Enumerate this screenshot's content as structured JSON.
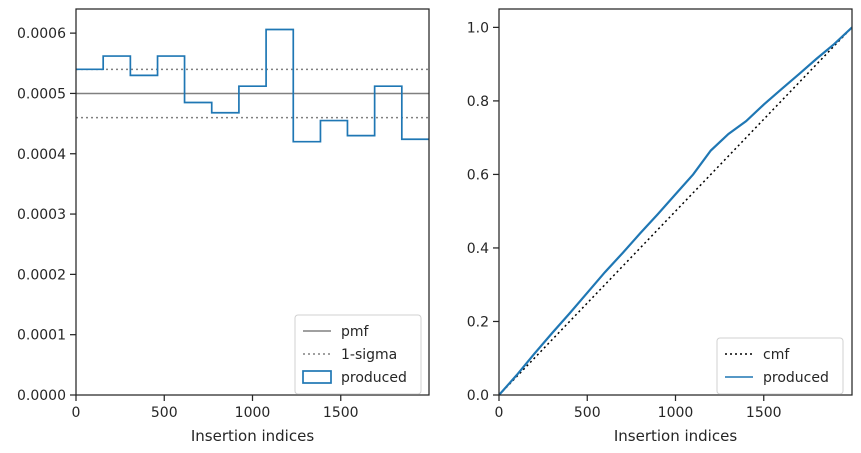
{
  "chart_data": [
    {
      "type": "line",
      "xlabel": "Insertion indices",
      "ylabel": "",
      "xlim": [
        0,
        2000
      ],
      "ylim": [
        0,
        0.00064
      ],
      "x_ticks": [
        0,
        500,
        1000,
        1500
      ],
      "x_tick_labels": [
        "0",
        "500",
        "1000",
        "1500"
      ],
      "y_ticks": [
        0,
        0.0001,
        0.0002,
        0.0003,
        0.0004,
        0.0005,
        0.0006
      ],
      "y_tick_labels": [
        "0.0000",
        "0.0001",
        "0.0002",
        "0.0003",
        "0.0004",
        "0.0005",
        "0.0006"
      ],
      "grid": false,
      "legend_position": "lower-right",
      "series": [
        {
          "name": "pmf",
          "kind": "hline",
          "value": 0.0005,
          "color": "#808080",
          "style": "solid"
        },
        {
          "name": "1-sigma",
          "kind": "hlines",
          "values": [
            0.00054,
            0.00046
          ],
          "color": "#808080",
          "style": "dotted"
        },
        {
          "name": "produced",
          "kind": "step",
          "color": "#1f77b4",
          "bin_edges": [
            0,
            154,
            308,
            462,
            615,
            769,
            923,
            1077,
            1231,
            1385,
            1538,
            1692,
            1846,
            2000
          ],
          "values": [
            0.00054,
            0.000562,
            0.00053,
            0.000562,
            0.000485,
            0.000468,
            0.000512,
            0.000606,
            0.00042,
            0.000455,
            0.00043,
            0.000512,
            0.000424
          ]
        }
      ]
    },
    {
      "type": "line",
      "xlabel": "Insertion indices",
      "ylabel": "",
      "xlim": [
        0,
        2000
      ],
      "ylim": [
        0,
        1.05
      ],
      "x_ticks": [
        0,
        500,
        1000,
        1500
      ],
      "x_tick_labels": [
        "0",
        "500",
        "1000",
        "1500"
      ],
      "y_ticks": [
        0,
        0.2,
        0.4,
        0.6,
        0.8,
        1.0
      ],
      "y_tick_labels": [
        "0.0",
        "0.2",
        "0.4",
        "0.6",
        "0.8",
        "1.0"
      ],
      "grid": false,
      "legend_position": "lower-right",
      "series": [
        {
          "name": "cmf",
          "x": [
            0,
            2000
          ],
          "y": [
            0,
            1.0
          ],
          "color": "#000000",
          "style": "dotted"
        },
        {
          "name": "produced",
          "color": "#1f77b4",
          "style": "solid",
          "x": [
            0,
            100,
            200,
            300,
            400,
            500,
            600,
            700,
            800,
            900,
            1000,
            1100,
            1200,
            1300,
            1400,
            1500,
            1600,
            1700,
            1800,
            1900,
            2000
          ],
          "y": [
            0,
            0.054,
            0.112,
            0.168,
            0.222,
            0.278,
            0.334,
            0.386,
            0.44,
            0.492,
            0.546,
            0.6,
            0.665,
            0.71,
            0.745,
            0.79,
            0.832,
            0.873,
            0.915,
            0.955,
            1.0
          ]
        }
      ]
    }
  ]
}
